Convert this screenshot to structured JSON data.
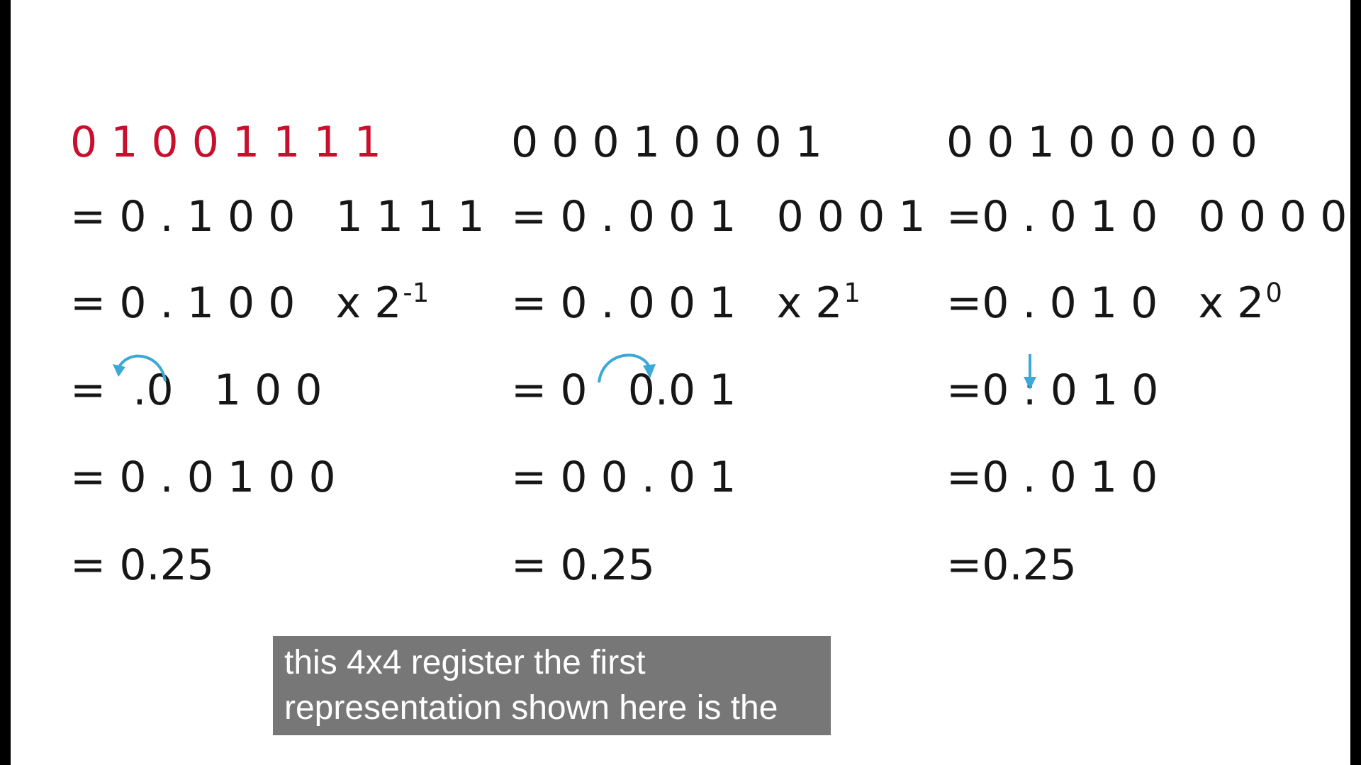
{
  "colors": {
    "highlight": "#c8102e",
    "text": "#161616",
    "arrow": "#3aa9d6",
    "caption_bg": "#6e6e6e",
    "caption_text": "#ffffff"
  },
  "columns": [
    {
      "binary": "0 1 0 0 1 1 1 1",
      "rows": [
        "= 0 . 1 0 0   1 1 1 1",
        "= 0 . 1 0 0   x 2",
        "=  .0   1 0 0",
        "= 0 . 0 1 0 0",
        "= 0.25"
      ],
      "exponent": "-1",
      "shift_mark": "arrow-curved-left"
    },
    {
      "binary": "0 0 0 1 0 0 0 1",
      "rows": [
        "= 0 . 0 0 1   0 0 0 1",
        "= 0 . 0 0 1   x 2",
        "= 0   0.0 1",
        "= 0 0 . 0 1",
        "= 0.25"
      ],
      "exponent": "1",
      "shift_mark": "arrow-curved-right"
    },
    {
      "binary": "0 0 1 0 0 0 0 0",
      "rows": [
        "=0 . 0 1 0   0 0 0 0",
        "=0 . 0 1 0   x 2",
        "=0 : 0 1 0",
        "=0 . 0 1 0",
        "=0.25"
      ],
      "exponent": "0",
      "shift_mark": "arrow-down"
    }
  ],
  "caption": {
    "line1": "this 4x4 register the first",
    "line2": "representation shown here is the"
  }
}
